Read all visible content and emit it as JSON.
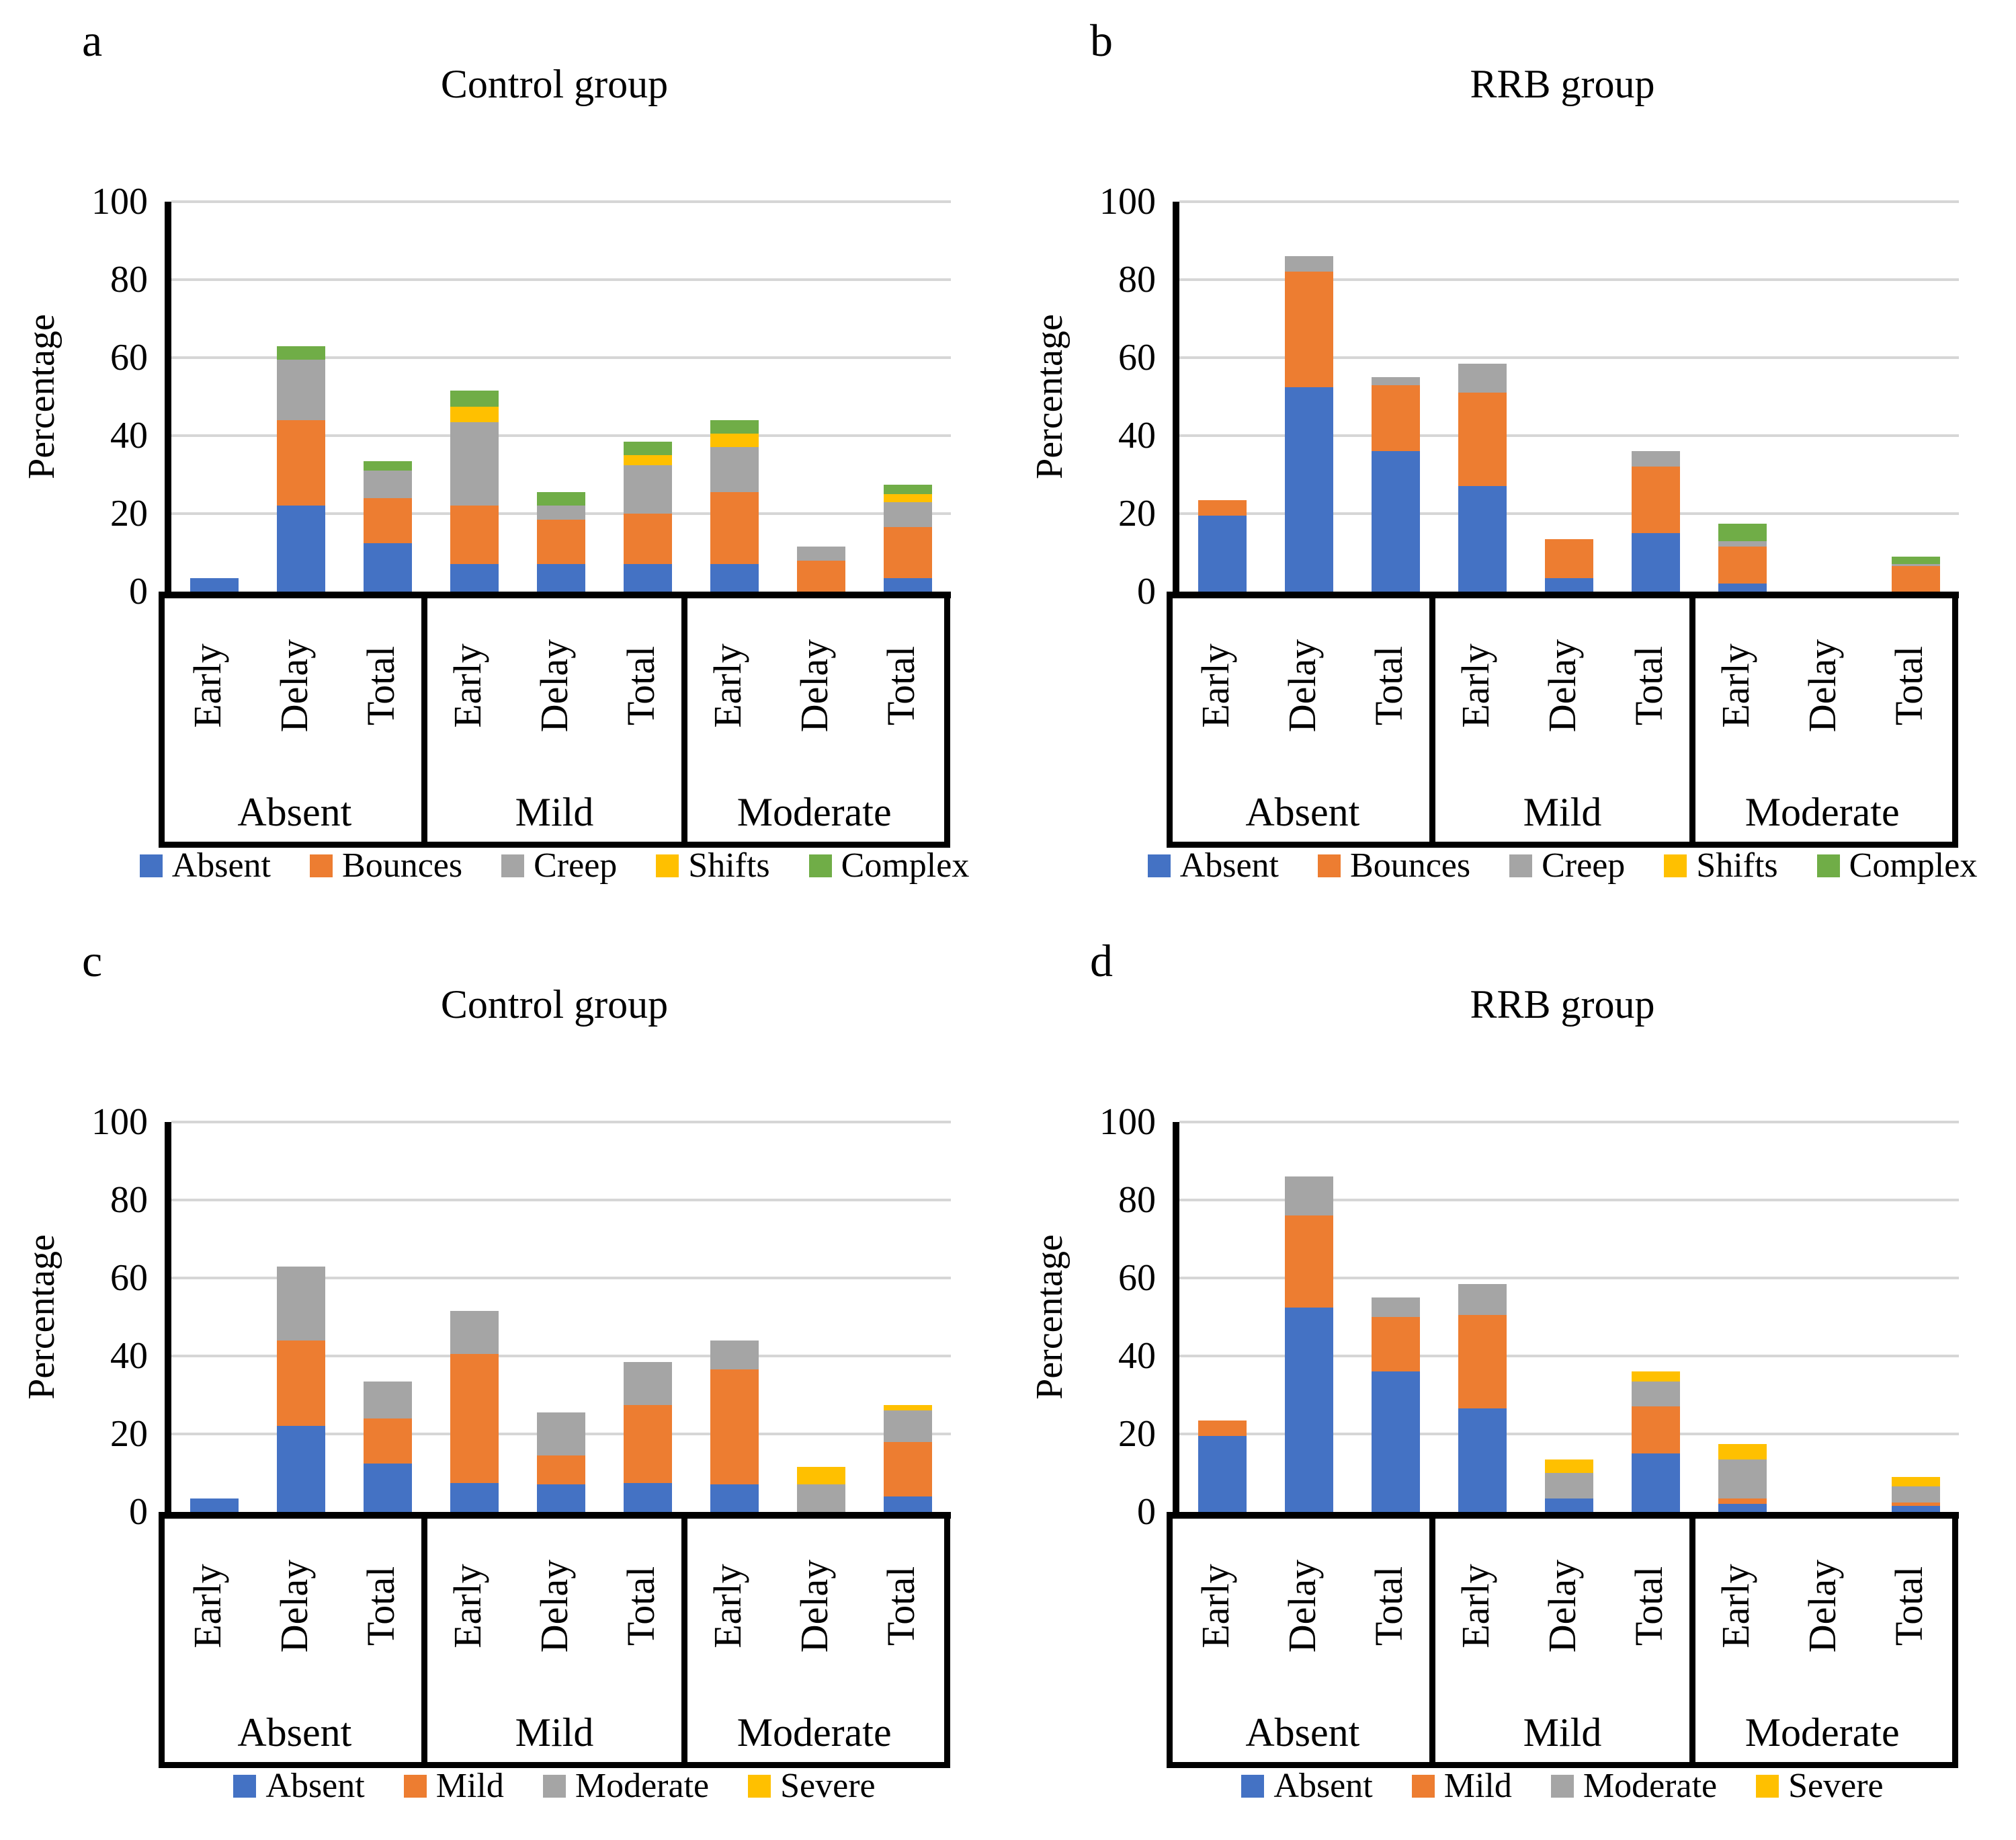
{
  "figure": {
    "background": "#ffffff",
    "grid_color": "#d6d6d6",
    "axis_color": "#000000"
  },
  "palette": {
    "blue": "#4472C4",
    "orange": "#ED7D31",
    "gray": "#A5A5A5",
    "yellow": "#FFC000",
    "green": "#70AD47"
  },
  "chart_data": [
    {
      "id": "a",
      "letter": "a",
      "type": "bar",
      "stacked": true,
      "title": "Control group",
      "ylabel": "Percentage",
      "ylim": [
        0,
        100
      ],
      "yticks": [
        0,
        20,
        40,
        60,
        80,
        100
      ],
      "grid": true,
      "legend_position": "bottom",
      "legend": [
        {
          "label": "Absent",
          "color": "#4472C4"
        },
        {
          "label": "Bounces",
          "color": "#ED7D31"
        },
        {
          "label": "Creep",
          "color": "#A5A5A5"
        },
        {
          "label": "Shifts",
          "color": "#FFC000"
        },
        {
          "label": "Complex",
          "color": "#70AD47"
        }
      ],
      "groups": [
        {
          "label": "Absent",
          "bars": [
            {
              "label": "Early",
              "values": [
                3.5,
                0,
                0,
                0,
                0
              ]
            },
            {
              "label": "Delay",
              "values": [
                22,
                22,
                15.5,
                0,
                3.5
              ]
            },
            {
              "label": "Total",
              "values": [
                12.5,
                11.5,
                7,
                0,
                2.5
              ]
            }
          ]
        },
        {
          "label": "Mild",
          "bars": [
            {
              "label": "Early",
              "values": [
                7,
                15,
                21.5,
                4,
                4
              ]
            },
            {
              "label": "Delay",
              "values": [
                7,
                11.5,
                3.5,
                0,
                3.5
              ]
            },
            {
              "label": "Total",
              "values": [
                7,
                13,
                12.5,
                2.5,
                3.5
              ]
            }
          ]
        },
        {
          "label": "Moderate",
          "bars": [
            {
              "label": "Early",
              "values": [
                7,
                18.5,
                11.5,
                3.5,
                3.5
              ]
            },
            {
              "label": "Delay",
              "values": [
                0,
                8,
                3.5,
                0,
                0
              ]
            },
            {
              "label": "Total",
              "values": [
                3.5,
                13,
                6.5,
                2,
                2.5
              ]
            }
          ]
        }
      ]
    },
    {
      "id": "b",
      "letter": "b",
      "type": "bar",
      "stacked": true,
      "title": "RRB group",
      "ylabel": "Percentage",
      "ylim": [
        0,
        100
      ],
      "yticks": [
        0,
        20,
        40,
        60,
        80,
        100
      ],
      "grid": true,
      "legend_position": "bottom",
      "legend": [
        {
          "label": "Absent",
          "color": "#4472C4"
        },
        {
          "label": "Bounces",
          "color": "#ED7D31"
        },
        {
          "label": "Creep",
          "color": "#A5A5A5"
        },
        {
          "label": "Shifts",
          "color": "#FFC000"
        },
        {
          "label": "Complex",
          "color": "#70AD47"
        }
      ],
      "groups": [
        {
          "label": "Absent",
          "bars": [
            {
              "label": "Early",
              "values": [
                19.5,
                4,
                0,
                0,
                0
              ]
            },
            {
              "label": "Delay",
              "values": [
                52.5,
                29.5,
                4,
                0,
                0
              ]
            },
            {
              "label": "Total",
              "values": [
                36,
                17,
                2,
                0,
                0
              ]
            }
          ]
        },
        {
          "label": "Mild",
          "bars": [
            {
              "label": "Early",
              "values": [
                27,
                24,
                7.5,
                0,
                0
              ]
            },
            {
              "label": "Delay",
              "values": [
                3.5,
                10,
                0,
                0,
                0
              ]
            },
            {
              "label": "Total",
              "values": [
                15,
                17,
                4,
                0,
                0
              ]
            }
          ]
        },
        {
          "label": "Moderate",
          "bars": [
            {
              "label": "Early",
              "values": [
                2,
                9.5,
                1.5,
                0,
                4.5
              ]
            },
            {
              "label": "Delay",
              "values": [
                0,
                0,
                0,
                0,
                0
              ]
            },
            {
              "label": "Total",
              "values": [
                0,
                6.5,
                0.5,
                0,
                2
              ]
            }
          ]
        }
      ]
    },
    {
      "id": "c",
      "letter": "c",
      "type": "bar",
      "stacked": true,
      "title": "Control group",
      "ylabel": "Percentage",
      "ylim": [
        0,
        100
      ],
      "yticks": [
        0,
        20,
        40,
        60,
        80,
        100
      ],
      "grid": true,
      "legend_position": "bottom",
      "legend": [
        {
          "label": "Absent",
          "color": "#4472C4"
        },
        {
          "label": "Mild",
          "color": "#ED7D31"
        },
        {
          "label": "Moderate",
          "color": "#A5A5A5"
        },
        {
          "label": "Severe",
          "color": "#FFC000"
        }
      ],
      "groups": [
        {
          "label": "Absent",
          "bars": [
            {
              "label": "Early",
              "values": [
                3.5,
                0,
                0,
                0
              ]
            },
            {
              "label": "Delay",
              "values": [
                22,
                22,
                19,
                0
              ]
            },
            {
              "label": "Total",
              "values": [
                12.5,
                11.5,
                9.5,
                0
              ]
            }
          ]
        },
        {
          "label": "Mild",
          "bars": [
            {
              "label": "Early",
              "values": [
                7.5,
                33,
                11,
                0
              ]
            },
            {
              "label": "Delay",
              "values": [
                7,
                7.5,
                11,
                0
              ]
            },
            {
              "label": "Total",
              "values": [
                7.5,
                20,
                11,
                0
              ]
            }
          ]
        },
        {
          "label": "Moderate",
          "bars": [
            {
              "label": "Early",
              "values": [
                7,
                29.5,
                7.5,
                0
              ]
            },
            {
              "label": "Delay",
              "values": [
                0,
                0,
                7,
                4.5
              ]
            },
            {
              "label": "Total",
              "values": [
                4,
                14,
                8,
                1.5
              ]
            }
          ]
        }
      ]
    },
    {
      "id": "d",
      "letter": "d",
      "type": "bar",
      "stacked": true,
      "title": "RRB group",
      "ylabel": "Percentage",
      "ylim": [
        0,
        100
      ],
      "yticks": [
        0,
        20,
        40,
        60,
        80,
        100
      ],
      "grid": true,
      "legend_position": "bottom",
      "legend": [
        {
          "label": "Absent",
          "color": "#4472C4"
        },
        {
          "label": "Mild",
          "color": "#ED7D31"
        },
        {
          "label": "Moderate",
          "color": "#A5A5A5"
        },
        {
          "label": "Severe",
          "color": "#FFC000"
        }
      ],
      "groups": [
        {
          "label": "Absent",
          "bars": [
            {
              "label": "Early",
              "values": [
                19.5,
                4,
                0,
                0
              ]
            },
            {
              "label": "Delay",
              "values": [
                52.5,
                23.5,
                10,
                0
              ]
            },
            {
              "label": "Total",
              "values": [
                36,
                14,
                5,
                0
              ]
            }
          ]
        },
        {
          "label": "Mild",
          "bars": [
            {
              "label": "Early",
              "values": [
                26.5,
                24,
                8,
                0
              ]
            },
            {
              "label": "Delay",
              "values": [
                3.5,
                0,
                6.5,
                3.5
              ]
            },
            {
              "label": "Total",
              "values": [
                15,
                12,
                6.5,
                2.5
              ]
            }
          ]
        },
        {
          "label": "Moderate",
          "bars": [
            {
              "label": "Early",
              "values": [
                2,
                1.5,
                10,
                4
              ]
            },
            {
              "label": "Delay",
              "values": [
                0,
                0,
                0,
                0
              ]
            },
            {
              "label": "Total",
              "values": [
                1.5,
                1,
                4,
                2.5
              ]
            }
          ]
        }
      ]
    }
  ]
}
